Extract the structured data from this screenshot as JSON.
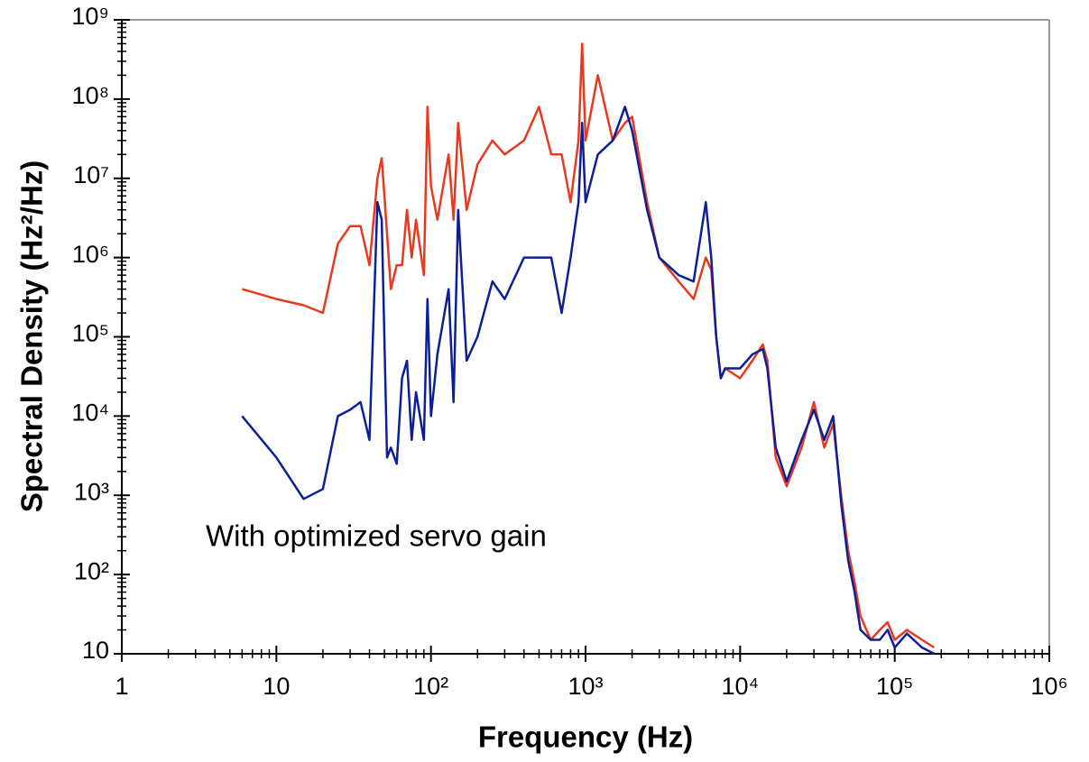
{
  "chart_data": {
    "type": "line",
    "x_label": "Frequency (Hz)",
    "y_label": "Spectral Density (Hz²/Hz)",
    "log_x": true,
    "log_y": true,
    "xlim": [
      1,
      1000000
    ],
    "ylim": [
      10,
      1000000000
    ],
    "xticks": [
      1,
      10,
      {
        "value": 100,
        "label": "10²"
      },
      {
        "value": 1000,
        "label": "10³"
      },
      {
        "value": 10000,
        "label": "10⁴"
      },
      {
        "value": 100000,
        "label": "10⁵"
      },
      {
        "value": 1000000,
        "label": "10⁶"
      }
    ],
    "yticks": [
      10,
      {
        "value": 100,
        "label": "10²"
      },
      {
        "value": 1000,
        "label": "10³"
      },
      {
        "value": 10000,
        "label": "10⁴"
      },
      {
        "value": 100000,
        "label": "10⁵"
      },
      {
        "value": 1000000,
        "label": "10⁶"
      },
      {
        "value": 10000000,
        "label": "10⁷"
      },
      {
        "value": 100000000,
        "label": "10⁸"
      },
      {
        "value": 1000000000,
        "label": "10⁹"
      }
    ],
    "x": [
      6,
      10,
      15,
      20,
      25,
      30,
      35,
      40,
      45,
      48,
      52,
      55,
      60,
      65,
      70,
      75,
      80,
      90,
      95,
      100,
      110,
      130,
      140,
      150,
      170,
      200,
      250,
      300,
      400,
      500,
      600,
      700,
      800,
      900,
      950,
      1000,
      1200,
      1500,
      1800,
      2000,
      2500,
      3000,
      4000,
      5000,
      6000,
      6500,
      7000,
      7500,
      8000,
      10000,
      12000,
      14000,
      15000,
      17000,
      20000,
      25000,
      30000,
      35000,
      40000,
      45000,
      50000,
      55000,
      60000,
      70000,
      80000,
      90000,
      100000,
      120000,
      150000,
      180000
    ],
    "series": [
      {
        "color": "#e8391f",
        "values": [
          400000,
          300000,
          250000,
          200000,
          1500000,
          2500000,
          2500000,
          800000,
          10000000,
          18000000,
          2000000,
          400000,
          800000,
          800000,
          4000000,
          1000000,
          3000000,
          600000,
          80000000,
          8000000,
          3000000,
          20000000,
          3000000,
          50000000,
          4000000,
          15000000,
          30000000,
          20000000,
          30000000,
          80000000,
          20000000,
          20000000,
          5000000,
          30000000,
          500000000,
          30000000,
          200000000,
          30000000,
          50000000,
          60000000,
          5000000,
          1000000,
          500000,
          300000,
          1000000,
          700000,
          100000,
          30000,
          40000,
          30000,
          50000,
          80000,
          50000,
          3000,
          1300,
          4000,
          15000,
          4000,
          8000,
          1000,
          200,
          80,
          30,
          15,
          20,
          25,
          15,
          20,
          15,
          12
        ]
      },
      {
        "name": "With optimized servo gain",
        "color": "#0c1f96",
        "values": [
          10000,
          3000,
          900,
          1200,
          10000,
          12000,
          15000,
          5000,
          5000000,
          3000000,
          3000,
          4000,
          2500,
          30000,
          50000,
          5000,
          20000,
          5000,
          300000,
          10000,
          60000,
          400000,
          15000,
          4000000,
          50000,
          100000,
          500000,
          300000,
          1000000,
          1000000,
          1000000,
          200000,
          1000000,
          5000000,
          50000000,
          5000000,
          20000000,
          30000000,
          80000000,
          40000000,
          4000000,
          1000000,
          600000,
          500000,
          5000000,
          1000000,
          100000,
          30000,
          40000,
          40000,
          60000,
          70000,
          40000,
          4000,
          1500,
          5000,
          12000,
          5000,
          10000,
          800,
          150,
          60,
          20,
          15,
          15,
          20,
          12,
          18,
          12,
          10
        ]
      }
    ]
  }
}
